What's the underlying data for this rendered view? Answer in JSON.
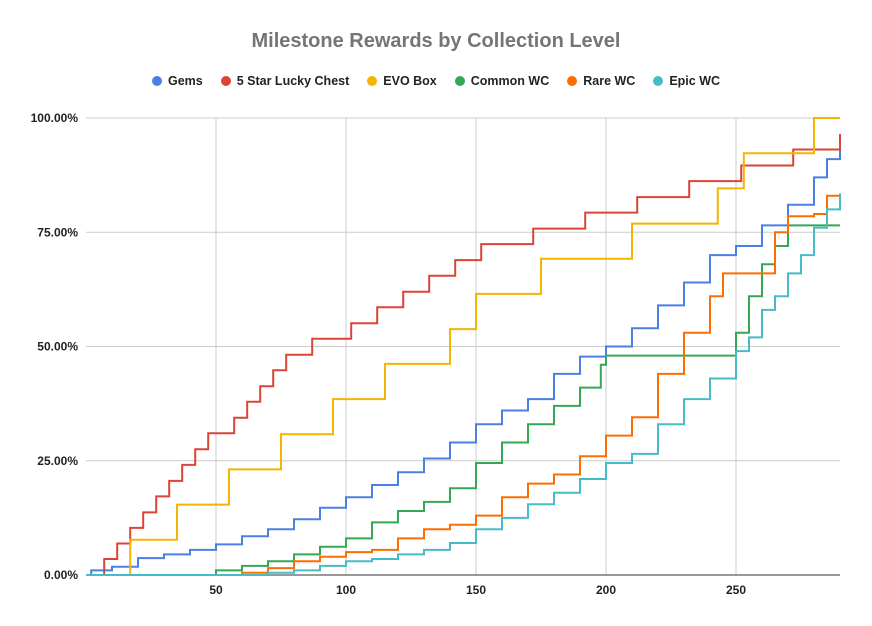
{
  "chart_data": {
    "type": "line",
    "title": "Milestone Rewards by Collection Level",
    "xlabel": "",
    "ylabel": "",
    "xlim": [
      0,
      290
    ],
    "ylim": [
      0,
      1
    ],
    "x_ticks": [
      50,
      100,
      150,
      200,
      250
    ],
    "x_tick_labels": [
      "50",
      "100",
      "150",
      "200",
      "250"
    ],
    "y_ticks": [
      0,
      0.25,
      0.5,
      0.75,
      1
    ],
    "y_tick_labels": [
      "0.00%",
      "25.00%",
      "50.00%",
      "75.00%",
      "100.00%"
    ],
    "grid": true,
    "legend_position": "top",
    "series": [
      {
        "name": "Gems",
        "color": "#4a80e6",
        "x": [
          0,
          2,
          10,
          20,
          30,
          40,
          50,
          60,
          70,
          80,
          90,
          100,
          110,
          120,
          130,
          140,
          150,
          160,
          170,
          180,
          190,
          200,
          210,
          220,
          230,
          240,
          250,
          260,
          270,
          280,
          285,
          290
        ],
        "y": [
          0,
          0.01,
          0.018,
          0.037,
          0.045,
          0.055,
          0.067,
          0.085,
          0.1,
          0.122,
          0.147,
          0.17,
          0.197,
          0.225,
          0.255,
          0.29,
          0.33,
          0.36,
          0.385,
          0.44,
          0.478,
          0.5,
          0.54,
          0.59,
          0.64,
          0.7,
          0.72,
          0.765,
          0.81,
          0.87,
          0.91,
          0.95
        ]
      },
      {
        "name": "5 Star Lucky Chest",
        "color": "#db4437",
        "x": [
          0,
          7,
          12,
          17,
          22,
          27,
          32,
          37,
          42,
          47,
          52,
          57,
          62,
          67,
          72,
          77,
          82,
          87,
          92,
          102,
          112,
          122,
          132,
          142,
          152,
          162,
          172,
          182,
          192,
          202,
          212,
          222,
          232,
          242,
          252,
          262,
          272,
          282,
          290
        ],
        "y": [
          0,
          0.035,
          0.069,
          0.103,
          0.137,
          0.172,
          0.206,
          0.241,
          0.275,
          0.31,
          0.31,
          0.344,
          0.379,
          0.413,
          0.448,
          0.482,
          0.482,
          0.517,
          0.517,
          0.551,
          0.586,
          0.62,
          0.655,
          0.689,
          0.724,
          0.724,
          0.758,
          0.758,
          0.793,
          0.793,
          0.827,
          0.827,
          0.862,
          0.862,
          0.896,
          0.896,
          0.931,
          0.931,
          0.965
        ]
      },
      {
        "name": "EVO Box",
        "color": "#f4b400",
        "x": [
          0,
          17,
          30,
          35,
          50,
          55,
          70,
          75,
          90,
          95,
          110,
          115,
          130,
          140,
          150,
          170,
          175,
          205,
          210,
          240,
          243,
          250,
          253,
          277,
          280,
          290
        ],
        "y": [
          0,
          0.077,
          0.077,
          0.154,
          0.154,
          0.231,
          0.231,
          0.308,
          0.308,
          0.385,
          0.385,
          0.462,
          0.462,
          0.538,
          0.615,
          0.615,
          0.692,
          0.692,
          0.769,
          0.769,
          0.846,
          0.846,
          0.923,
          0.923,
          1.0,
          1.0
        ]
      },
      {
        "name": "Common WC",
        "color": "#34a853",
        "x": [
          0,
          50,
          60,
          70,
          80,
          90,
          100,
          110,
          120,
          130,
          140,
          150,
          160,
          170,
          180,
          190,
          198,
          200,
          210,
          220,
          230,
          240,
          245,
          250,
          255,
          260,
          265,
          270,
          290
        ],
        "y": [
          0,
          0.01,
          0.02,
          0.03,
          0.045,
          0.062,
          0.08,
          0.115,
          0.14,
          0.16,
          0.19,
          0.245,
          0.29,
          0.33,
          0.37,
          0.41,
          0.46,
          0.48,
          0.48,
          0.48,
          0.48,
          0.48,
          0.48,
          0.53,
          0.61,
          0.68,
          0.72,
          0.765,
          0.765
        ]
      },
      {
        "name": "Rare WC",
        "color": "#ff6d00",
        "x": [
          0,
          60,
          70,
          80,
          90,
          100,
          110,
          120,
          130,
          140,
          150,
          160,
          170,
          180,
          190,
          200,
          210,
          220,
          230,
          240,
          245,
          250,
          260,
          265,
          270,
          280,
          285,
          290
        ],
        "y": [
          0,
          0.005,
          0.015,
          0.03,
          0.04,
          0.05,
          0.055,
          0.08,
          0.1,
          0.11,
          0.13,
          0.17,
          0.2,
          0.22,
          0.26,
          0.305,
          0.345,
          0.44,
          0.53,
          0.61,
          0.66,
          0.66,
          0.66,
          0.75,
          0.785,
          0.79,
          0.83,
          0.83
        ]
      },
      {
        "name": "Epic WC",
        "color": "#46bdc6",
        "x": [
          0,
          70,
          80,
          90,
          100,
          110,
          120,
          130,
          140,
          150,
          160,
          170,
          180,
          190,
          200,
          210,
          220,
          230,
          240,
          250,
          255,
          260,
          265,
          270,
          275,
          280,
          285,
          290
        ],
        "y": [
          0,
          0.005,
          0.01,
          0.02,
          0.03,
          0.035,
          0.045,
          0.055,
          0.07,
          0.1,
          0.125,
          0.155,
          0.18,
          0.21,
          0.245,
          0.265,
          0.33,
          0.385,
          0.43,
          0.49,
          0.52,
          0.58,
          0.61,
          0.66,
          0.7,
          0.76,
          0.8,
          0.835
        ]
      }
    ]
  }
}
